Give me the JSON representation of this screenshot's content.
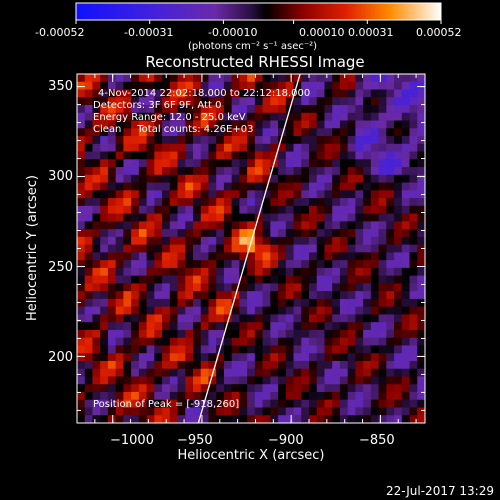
{
  "chart_data": {
    "type": "heatmap",
    "title": "Reconstructed RHESSI Image",
    "xlabel": "Heliocentric X (arcsec)",
    "ylabel": "Heliocentric Y (arcsec)",
    "xlim": [
      -1020,
      -825
    ],
    "ylim": [
      163,
      357
    ],
    "x_ticks": [
      -1000,
      -950,
      -900,
      -850
    ],
    "x_tick_labels": [
      "−1000",
      "−950",
      "−900",
      "−850"
    ],
    "y_ticks": [
      200,
      250,
      300,
      350
    ],
    "y_tick_labels": [
      "200",
      "250",
      "300",
      "350"
    ],
    "colorbar": {
      "range": [
        -0.00052,
        0.00052
      ],
      "ticks": [
        -0.00052,
        -0.00031,
        -0.0001,
        0.0001,
        0.00031,
        0.00052
      ],
      "tick_labels": [
        "-0.00052",
        "-0.00031",
        "-0.00010",
        "0.00010",
        "0.00031",
        "0.00052"
      ],
      "units_label": "(photons cm⁻² s⁻¹ asec⁻²)"
    },
    "annotations": [
      "4-Nov-2014 22:02:18.000 to 22:12:18.000",
      "Detectors: 3F 6F 9F, Att 0",
      "Energy Range: 12.0 - 25.0 keV",
      "Clean     Total counts: 4.26E+03"
    ],
    "peak_label": "Position of Peak = [-918,260]",
    "peak": {
      "x": -918,
      "y": 260
    },
    "limb_line": [
      [
        -952,
        163
      ],
      [
        -895,
        357
      ]
    ],
    "footer": "22-Jul-2017 13:29",
    "grid": false
  }
}
